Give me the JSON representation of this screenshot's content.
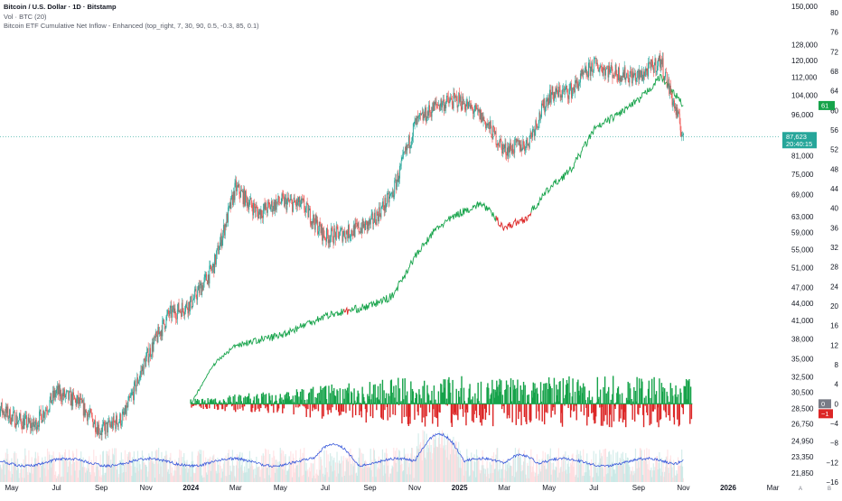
{
  "legend": {
    "title": "Bitcoin / U.S. Dollar · 1D · Bitstamp",
    "volume": "Vol · BTC (20)",
    "indicator": "Bitcoin ETF Cumulative Net Inflow - Enhanced (top_right, 7, 30, 90, 0.5, -0.3, 85, 0.1)"
  },
  "colors": {
    "up": "#26a69a",
    "down": "#ef5350",
    "inflow_green": "#16a34a",
    "outflow_red": "#dc2626",
    "volume_line": "#3b5bdb",
    "price_line": "#26a69a"
  },
  "chart_data": {
    "type": "line",
    "title": "Bitcoin / U.S. Dollar · 1D · Bitstamp",
    "x_axis": {
      "ticks": [
        "May",
        "Jul",
        "Sep",
        "Nov",
        "2024",
        "Mar",
        "May",
        "Jul",
        "Sep",
        "Nov",
        "2025",
        "Mar",
        "May",
        "Jul",
        "Sep",
        "Nov",
        "2026",
        "Mar"
      ],
      "bold_ticks": [
        "2024",
        "2025",
        "2026"
      ]
    },
    "price_axis": {
      "scale": "log",
      "tick_labels": [
        "150,000",
        "128,000",
        "120,000",
        "112,000",
        "104,000",
        "96,000",
        "81,000",
        "75,000",
        "69,000",
        "63,000",
        "59,000",
        "55,000",
        "51,000",
        "47,000",
        "44,000",
        "41,000",
        "38,000",
        "35,000",
        "32,500",
        "30,500",
        "28,500",
        "26,750",
        "24,950",
        "23,350",
        "21,850"
      ],
      "current_price": "87,623",
      "countdown": "20:40:15"
    },
    "indicator_axis": {
      "range": [
        -16,
        80
      ],
      "tick_labels": [
        "80",
        "76",
        "72",
        "68",
        "64",
        "60",
        "56",
        "52",
        "48",
        "44",
        "40",
        "36",
        "32",
        "28",
        "24",
        "20",
        "16",
        "12",
        "8",
        "4",
        "0",
        "−4",
        "−8",
        "−12",
        "−16"
      ],
      "cumulative_badge": "61",
      "zero_badge": "0",
      "daily_badge": "−1"
    },
    "price_series": [
      {
        "date": "2023-04",
        "value": 29500
      },
      {
        "date": "2023-05",
        "value": 27500
      },
      {
        "date": "2023-06",
        "value": 26500
      },
      {
        "date": "2023-07",
        "value": 30500
      },
      {
        "date": "2023-08",
        "value": 29200
      },
      {
        "date": "2023-09",
        "value": 26000
      },
      {
        "date": "2023-10",
        "value": 27500
      },
      {
        "date": "2023-11",
        "value": 35000
      },
      {
        "date": "2023-12",
        "value": 42000
      },
      {
        "date": "2024-01",
        "value": 44000
      },
      {
        "date": "2024-02",
        "value": 51000
      },
      {
        "date": "2024-03",
        "value": 71000
      },
      {
        "date": "2024-04",
        "value": 64000
      },
      {
        "date": "2024-05",
        "value": 67000
      },
      {
        "date": "2024-06",
        "value": 66000
      },
      {
        "date": "2024-07",
        "value": 58000
      },
      {
        "date": "2024-08",
        "value": 59000
      },
      {
        "date": "2024-09",
        "value": 61000
      },
      {
        "date": "2024-10",
        "value": 69000
      },
      {
        "date": "2024-11",
        "value": 92000
      },
      {
        "date": "2024-12",
        "value": 100000
      },
      {
        "date": "2025-01",
        "value": 102000
      },
      {
        "date": "2025-02",
        "value": 95000
      },
      {
        "date": "2025-03",
        "value": 83000
      },
      {
        "date": "2025-04",
        "value": 85000
      },
      {
        "date": "2025-05",
        "value": 104000
      },
      {
        "date": "2025-06",
        "value": 106000
      },
      {
        "date": "2025-07",
        "value": 118000
      },
      {
        "date": "2025-08",
        "value": 114000
      },
      {
        "date": "2025-09",
        "value": 112000
      },
      {
        "date": "2025-10",
        "value": 120000
      },
      {
        "date": "2025-11",
        "value": 87623
      }
    ],
    "series": [
      {
        "name": "ETF Cumulative Net Inflow (billions)",
        "points": [
          {
            "date": "2024-01",
            "value": 0
          },
          {
            "date": "2024-02",
            "value": 8
          },
          {
            "date": "2024-03",
            "value": 12
          },
          {
            "date": "2024-04",
            "value": 13
          },
          {
            "date": "2024-05",
            "value": 14
          },
          {
            "date": "2024-06",
            "value": 16
          },
          {
            "date": "2024-07",
            "value": 18
          },
          {
            "date": "2024-08",
            "value": 19
          },
          {
            "date": "2024-09",
            "value": 20
          },
          {
            "date": "2024-10",
            "value": 22
          },
          {
            "date": "2024-11",
            "value": 30
          },
          {
            "date": "2024-12",
            "value": 36
          },
          {
            "date": "2025-01",
            "value": 39
          },
          {
            "date": "2025-02",
            "value": 41
          },
          {
            "date": "2025-03",
            "value": 36
          },
          {
            "date": "2025-04",
            "value": 38
          },
          {
            "date": "2025-05",
            "value": 44
          },
          {
            "date": "2025-06",
            "value": 48
          },
          {
            "date": "2025-07",
            "value": 56
          },
          {
            "date": "2025-08",
            "value": 59
          },
          {
            "date": "2025-09",
            "value": 62
          },
          {
            "date": "2025-10",
            "value": 67
          },
          {
            "date": "2025-11",
            "value": 61
          }
        ]
      }
    ],
    "daily_flow_range": [
      -1.5,
      1.1
    ],
    "volume_average": "Vol · BTC (20)"
  }
}
